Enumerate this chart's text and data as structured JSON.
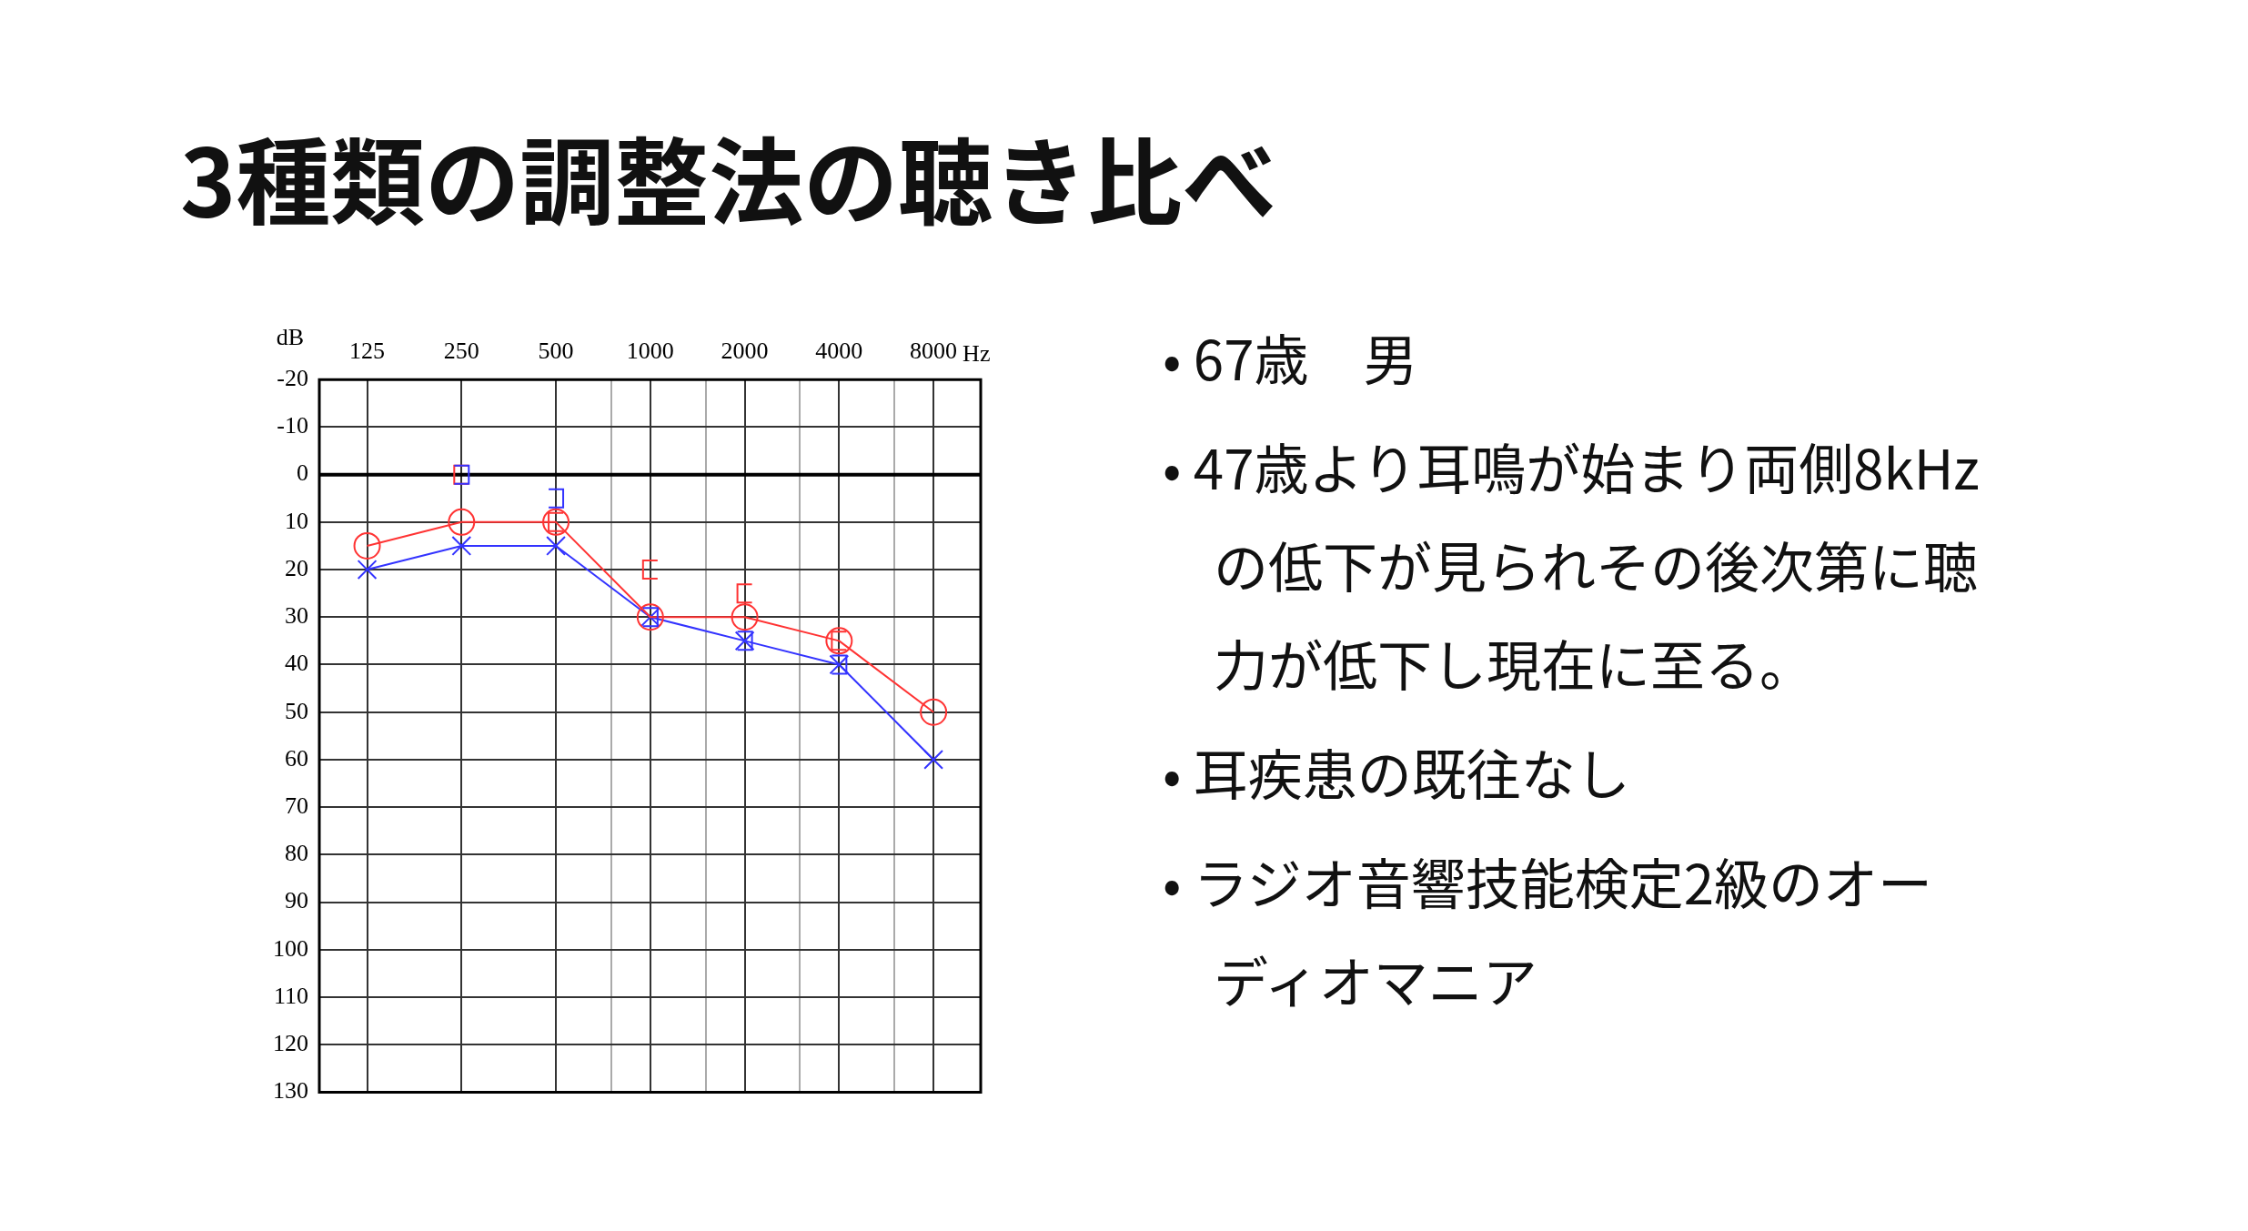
{
  "chart_data": {
    "type": "line",
    "title": "3種類の調整法の聴き比べ",
    "xlabel": "Hz",
    "ylabel": "dB",
    "x": [
      125,
      250,
      500,
      1000,
      2000,
      4000,
      8000
    ],
    "log": "x",
    "xlim": [
      88,
      11314
    ],
    "xticks": [
      125,
      250,
      500,
      {
        "value": 750,
        "label": null
      },
      1000,
      {
        "value": 1500,
        "label": null
      },
      2000,
      {
        "value": 3000,
        "label": null
      },
      4000,
      {
        "value": 6000,
        "label": null
      },
      8000
    ],
    "ylim": [
      130,
      -20
    ],
    "yticks": [
      -20,
      -10,
      0,
      10,
      20,
      30,
      40,
      50,
      60,
      70,
      80,
      90,
      100,
      110,
      120,
      130
    ],
    "grid": true,
    "series": [
      {
        "color": "#ff3333",
        "marker": "circle",
        "values": [
          15,
          10,
          10,
          30,
          30,
          35,
          50
        ]
      },
      {
        "color": "#3333ff",
        "marker": "cross",
        "values": [
          20,
          15,
          15,
          30,
          35,
          40,
          60
        ]
      },
      {
        "type": "scatter",
        "color": "#ff3333",
        "x": [
          250,
          500,
          1000,
          2000,
          4000
        ],
        "values": [
          0,
          10,
          20,
          25,
          35
        ]
      },
      {
        "type": "scatter",
        "color": "#3333ff",
        "x": [
          250,
          500,
          1000,
          2000,
          4000
        ],
        "values": [
          0,
          5,
          30,
          35,
          40
        ]
      }
    ],
    "annotations": [
      "• 67歳　男",
      "• 47歳より耳鳴が始まり両側8kHzの低下が見られその後次第に聴力が低下し現在に至る。",
      "• 耳疾患の既往なし",
      "• ラジオ音響技能検定2級のオーディオマニア"
    ]
  }
}
